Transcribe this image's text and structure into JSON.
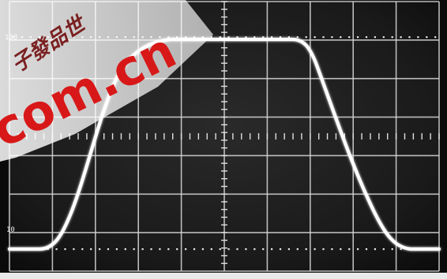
{
  "image": {
    "subject": "oscilloscope trace",
    "screen": {
      "background": "#1b1b1b",
      "grid_color": "#d8d8d8",
      "trace_color": "#ffffff",
      "horizontal_divisions": 10,
      "vertical_divisions": 7
    },
    "graticule_labels": {
      "upper_reference": "100",
      "lower_reference": "10"
    },
    "watermark": {
      "cjk_text": "子發品世",
      "domain_text": "com.cn",
      "accent_color": "#d81818",
      "overlay_color": "#f2f2f2"
    }
  }
}
